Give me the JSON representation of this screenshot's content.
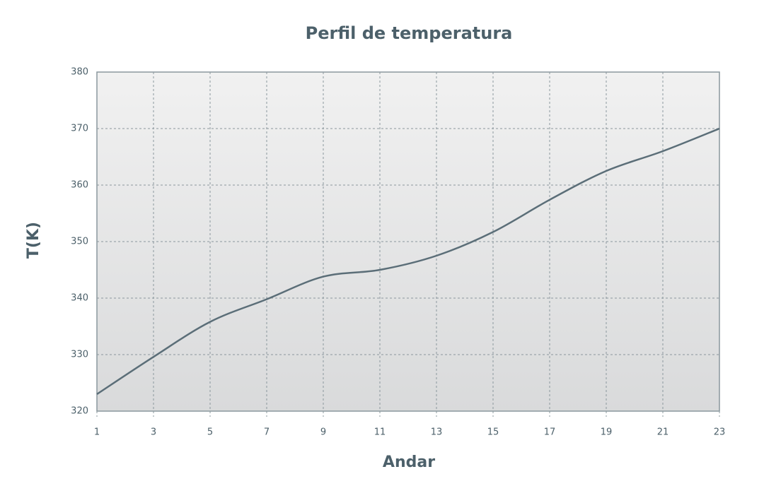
{
  "chart_data": {
    "type": "line",
    "title": "Perfil de temperatura",
    "x_label": "Andar",
    "y_label": "T(K)",
    "x": [
      1,
      3,
      5,
      7,
      9,
      11,
      13,
      15,
      17,
      19,
      21,
      23
    ],
    "series": [
      {
        "name": "T",
        "color": "#5b6e78",
        "values": [
          323,
          329.6,
          335.8,
          339.8,
          343.8,
          345,
          347.5,
          351.7,
          357.4,
          362.5,
          366,
          370
        ]
      }
    ],
    "xlim": [
      1,
      23
    ],
    "xticks": [
      1,
      3,
      5,
      7,
      9,
      11,
      13,
      15,
      17,
      19,
      21,
      23
    ],
    "ylim": [
      320,
      380
    ],
    "yticks": [
      320,
      330,
      340,
      350,
      360,
      370,
      380
    ],
    "grid": true
  }
}
